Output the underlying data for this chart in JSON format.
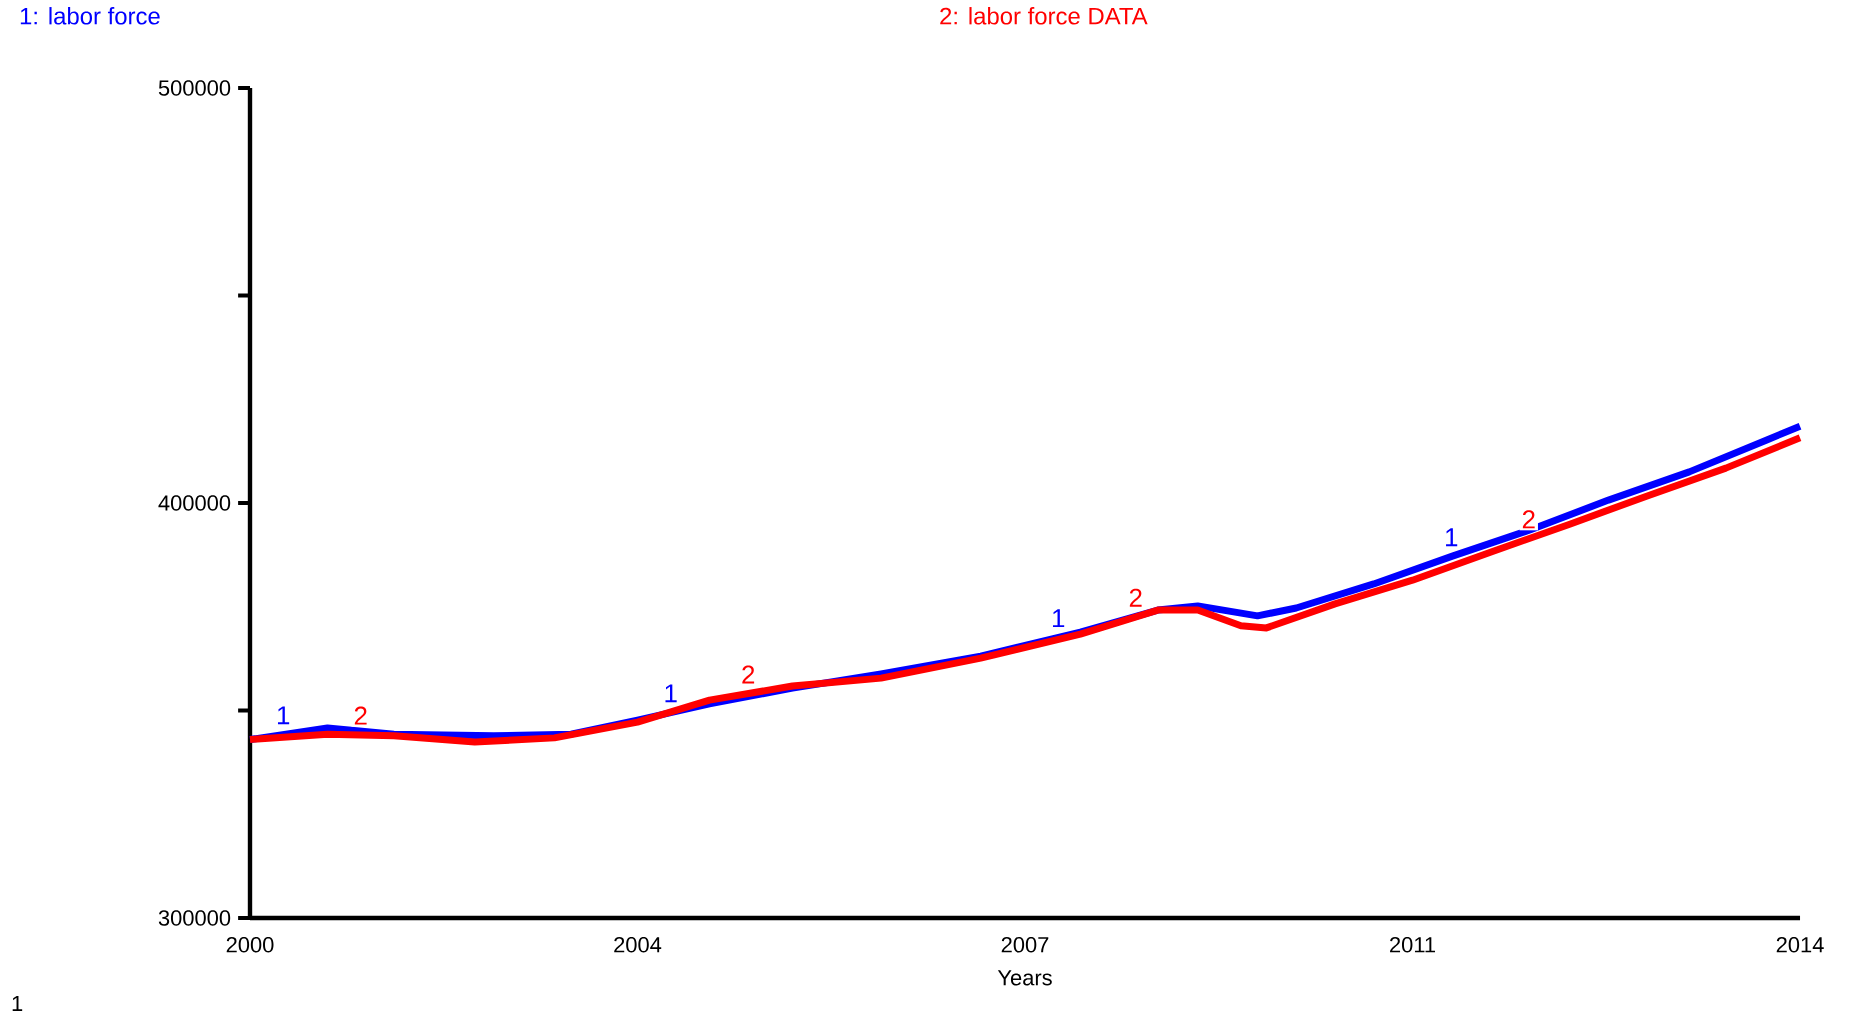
{
  "chart_data": {
    "type": "line",
    "xlabel": "Years",
    "xlim": [
      2000,
      2014
    ],
    "xticks": [
      2000,
      {
        "value": 2003.5,
        "label": "2004"
      },
      2007,
      {
        "value": 2010.5,
        "label": "2011"
      },
      2014
    ],
    "ylim": [
      300000,
      500000
    ],
    "yticks": [
      300000,
      {
        "value": 350000,
        "label": null
      },
      400000,
      {
        "value": 450000,
        "label": null
      },
      500000
    ],
    "grid": false,
    "legend": "top",
    "marker": "none",
    "line_style": "solid",
    "series": [
      {
        "name": "1: labor force",
        "color": "#0000ff",
        "x": [
          2000,
          2000.7,
          2001.3,
          2002.2,
          2002.9,
          2003.5,
          2004.15,
          2004.9,
          2005.7,
          2006.6,
          2007.5,
          2008.2,
          2008.56,
          2009.1,
          2009.45,
          2010.15,
          2010.86,
          2011.56,
          2012.27,
          2013,
          2013.7,
          2014
        ],
        "values": [
          343000,
          345800,
          344300,
          343900,
          344300,
          347700,
          351600,
          355400,
          358800,
          363100,
          368900,
          374200,
          375200,
          372800,
          374700,
          380500,
          387200,
          393500,
          400700,
          407500,
          415200,
          418500
        ]
      },
      {
        "name": "2: labor force DATA",
        "color": "#ff0000",
        "x": [
          2000,
          2000.7,
          2001.3,
          2002.03,
          2002.75,
          2003.5,
          2004.15,
          2004.9,
          2005.7,
          2006.6,
          2007.5,
          2008.2,
          2008.56,
          2008.95,
          2009.18,
          2009.8,
          2010.5,
          2011.21,
          2011.92,
          2012.62,
          2013.33,
          2014
        ],
        "values": [
          343000,
          344300,
          343900,
          342400,
          343400,
          347200,
          352500,
          355900,
          357800,
          362600,
          368400,
          374200,
          374200,
          370400,
          369900,
          375700,
          381400,
          388200,
          394900,
          401700,
          408400,
          415700
        ]
      }
    ],
    "annotations": [
      {
        "text": "1",
        "x": 2000.3,
        "y": 344200
      },
      {
        "text": "2",
        "x": 2001.0,
        "y": 344100
      },
      {
        "text": "1",
        "x": 2003.8,
        "y": 349500
      },
      {
        "text": "2",
        "x": 2004.5,
        "y": 354000
      },
      {
        "text": "1",
        "x": 2007.3,
        "y": 367600
      },
      {
        "text": "2",
        "x": 2008.0,
        "y": 372500
      },
      {
        "text": "1",
        "x": 2010.85,
        "y": 387100
      },
      {
        "text": "2",
        "x": 2011.55,
        "y": 391400
      },
      "1"
    ]
  }
}
